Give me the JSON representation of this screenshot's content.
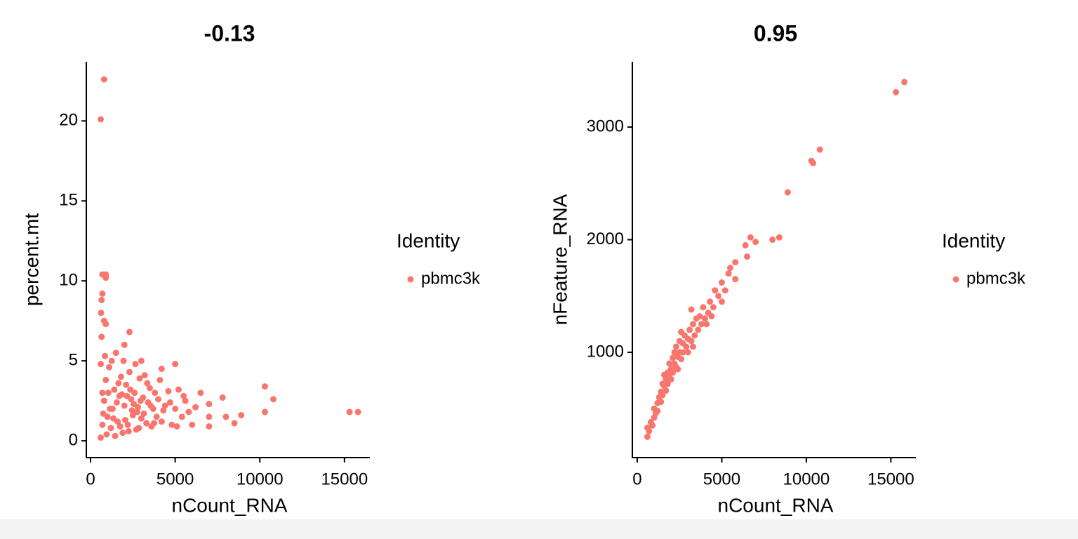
{
  "chart_data": [
    {
      "type": "scatter",
      "title": "-0.13",
      "x_label": "nCount_RNA",
      "y_label": "percent.mt",
      "legend_title": "Identity",
      "xlim": [
        -125,
        16500
      ],
      "ylim": [
        -1.05,
        23.7
      ],
      "xticks": [
        0,
        5000,
        10000,
        15000
      ],
      "yticks": [
        0,
        5,
        10,
        15,
        20
      ],
      "series": [
        {
          "name": "pbmc3k",
          "color": "#F8766D",
          "x": [
            800,
            600,
            700,
            900,
            900,
            700,
            650,
            620,
            800,
            900,
            15300,
            15800,
            10300,
            10800,
            10300,
            8900,
            8500,
            8000,
            7800,
            7000,
            7000,
            7000,
            6500,
            5000,
            2300,
            2000,
            3000,
            4200,
            600,
            700,
            800,
            900,
            1000,
            1100,
            1200,
            1300,
            1400,
            1500,
            1600,
            1700,
            1800,
            1900,
            2000,
            2100,
            2200,
            2300,
            2400,
            2500,
            2600,
            2700,
            2800,
            2900,
            3000,
            3100,
            3200,
            3300,
            3400,
            3500,
            3600,
            3700,
            3800,
            3900,
            4000,
            4200,
            4400,
            4600,
            4800,
            5000,
            5200,
            5400,
            5600,
            5800,
            6000,
            6200,
            600,
            650,
            700,
            750,
            850,
            950,
            1050,
            1150,
            1250,
            1350,
            1450,
            1550,
            1650,
            1750,
            1850,
            1950,
            2050,
            2150,
            2250,
            2350,
            2450,
            2550,
            2650,
            2750,
            2850,
            2950,
            3150,
            3350,
            3550,
            3750,
            4100,
            4300,
            4700,
            5100,
            5500
          ],
          "values": [
            22.6,
            20.1,
            10.4,
            10.4,
            10.2,
            9.2,
            8.8,
            8.0,
            7.5,
            7.3,
            1.8,
            1.8,
            3.4,
            2.6,
            1.8,
            1.6,
            1.1,
            1.5,
            2.7,
            2.3,
            1.5,
            0.9,
            3.0,
            4.8,
            6.8,
            6.0,
            5.0,
            4.5,
            0.2,
            1.0,
            2.5,
            3.8,
            1.5,
            4.6,
            0.8,
            2.0,
            3.2,
            5.5,
            1.2,
            2.8,
            4.0,
            0.5,
            2.2,
            3.5,
            1.0,
            4.3,
            2.6,
            1.6,
            3.0,
            0.7,
            2.1,
            3.9,
            1.4,
            2.7,
            4.1,
            1.1,
            2.4,
            3.3,
            0.9,
            2.0,
            3.0,
            1.5,
            2.6,
            1.2,
            2.2,
            3.1,
            1.0,
            2.0,
            3.2,
            1.5,
            2.5,
            1.8,
            1.0,
            2.1,
            4.8,
            6.5,
            3.0,
            1.7,
            5.3,
            0.4,
            3.0,
            2.0,
            5.0,
            1.4,
            0.3,
            2.4,
            3.6,
            0.9,
            2.9,
            5.0,
            1.3,
            2.8,
            0.6,
            3.2,
            1.9,
            2.3,
            4.8,
            1.8,
            0.8,
            2.5,
            1.7,
            3.6,
            2.2,
            1.1,
            3.8,
            1.9,
            2.4,
            0.9,
            2.8
          ]
        }
      ]
    },
    {
      "type": "scatter",
      "title": "0.95",
      "x_label": "nCount_RNA",
      "y_label": "nFeature_RNA",
      "legend_title": "Identity",
      "xlim": [
        -165,
        16480
      ],
      "ylim": [
        65,
        3580
      ],
      "xticks": [
        0,
        5000,
        10000,
        15000
      ],
      "yticks": [
        1000,
        2000,
        3000
      ],
      "series": [
        {
          "name": "pbmc3k",
          "color": "#F8766D",
          "x": [
            15800,
            15300,
            10800,
            10300,
            10400,
            8900,
            8400,
            8000,
            6700,
            7000,
            6400,
            6500,
            5800,
            5500,
            5800,
            600,
            600,
            700,
            800,
            900,
            1000,
            1000,
            1100,
            1200,
            1200,
            1300,
            1400,
            1400,
            1500,
            1500,
            1600,
            1700,
            1700,
            1800,
            1800,
            1900,
            1900,
            2000,
            2000,
            2100,
            2100,
            2200,
            2200,
            2300,
            2300,
            2400,
            2500,
            2500,
            2600,
            2700,
            2700,
            2800,
            2900,
            3000,
            3000,
            3100,
            3200,
            3300,
            3400,
            3500,
            3600,
            3700,
            3800,
            3900,
            4000,
            4200,
            4300,
            4500,
            4600,
            4800,
            5000,
            5200,
            5400,
            5000,
            4400,
            3200,
            2600,
            1600,
            2400,
            3300,
            4100
          ],
          "values": [
            3400,
            3310,
            2800,
            2700,
            2680,
            2420,
            2020,
            2000,
            2020,
            1980,
            1950,
            1850,
            1800,
            1750,
            1650,
            250,
            330,
            300,
            380,
            350,
            420,
            500,
            460,
            550,
            480,
            600,
            560,
            650,
            620,
            720,
            700,
            760,
            660,
            820,
            720,
            780,
            900,
            850,
            760,
            950,
            820,
            900,
            1000,
            870,
            1050,
            960,
            1000,
            1100,
            940,
            1080,
            1000,
            1150,
            1050,
            1120,
            1000,
            1200,
            1100,
            1250,
            1150,
            1300,
            1200,
            1320,
            1250,
            1400,
            1300,
            1350,
            1450,
            1400,
            1550,
            1500,
            1620,
            1550,
            1700,
            1450,
            1320,
            1380,
            1180,
            800,
            850,
            1050,
            1250
          ]
        }
      ]
    }
  ]
}
